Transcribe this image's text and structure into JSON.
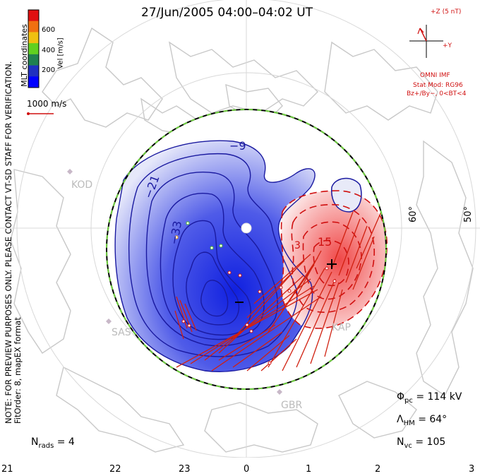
{
  "title": "27/Jun/2005 04:00–04:02 UT",
  "side_note": {
    "line1": "NOTE: FOR PREVIEW PURPOSES ONLY. PLEASE CONTACT VT-SD STAFF FOR VERIFICATION.",
    "line2": "FitOrder: 8, mapEX format"
  },
  "mlt_coordinates_label": "MLT coordinates",
  "colorbar": {
    "label": "Vel [m/s]",
    "ticks": [
      "600",
      "400",
      "200"
    ],
    "colors": [
      "#e01010",
      "#f07010",
      "#f0c010",
      "#60d020",
      "#208050",
      "#2030c0",
      "#0000ff"
    ]
  },
  "scale_vector_label": "1000 m/s",
  "imf": {
    "z_label": "+Z (5 nT)",
    "y_label": "+Y",
    "source": "OMNI IMF",
    "stat_mod": "Stat Mod: RG96",
    "condition": "Bz+/By−, 0<BT<4"
  },
  "contours": {
    "labels": [
      "−9",
      "−21",
      "−33",
      "15",
      "3"
    ],
    "negative_color": "#1a1aa0",
    "positive_color": "#d01010"
  },
  "stations": [
    "KOD",
    "SAS",
    "GBR",
    "KAP"
  ],
  "latitude_labels": [
    "60°",
    "50°"
  ],
  "mlt_labels": [
    "21",
    "22",
    "23",
    "0",
    "1",
    "2",
    "3"
  ],
  "stats": {
    "nrads_label": "N",
    "nrads_sub": "rads",
    "nrads_value": "= 4",
    "phi_label": "Φ",
    "phi_sub": "pc",
    "phi_value": "= 114 kV",
    "lambda_label": "Λ",
    "lambda_sub": "HM",
    "lambda_value": "= 64°",
    "nvc_label": "N",
    "nvc_sub": "vc",
    "nvc_value": "= 105"
  }
}
